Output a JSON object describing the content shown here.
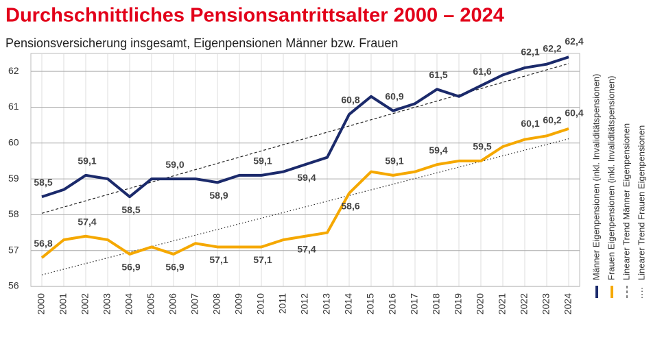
{
  "chart_data": {
    "type": "line",
    "title": "Durchschnittliches Pensionsantrittsalter 2000 – 2024",
    "subtitle": "Pensionsversicherung insgesamt, Eigenpensionen Männer bzw. Frauen",
    "categories": [
      "2000",
      "2001",
      "2002",
      "2003",
      "2004",
      "2005",
      "2006",
      "2007",
      "2008",
      "2009",
      "2010",
      "2011",
      "2012",
      "2013",
      "2014",
      "2015",
      "2016",
      "2017",
      "2018",
      "2019",
      "2020",
      "2021",
      "2022",
      "2023",
      "2024"
    ],
    "series": [
      {
        "name": "Männer Eigenpensionen (inkl. Invaliditätspensionen)",
        "color": "#1b2a6b",
        "values": [
          58.5,
          58.7,
          59.1,
          59.0,
          58.5,
          59.0,
          59.0,
          59.0,
          58.9,
          59.1,
          59.1,
          59.2,
          59.4,
          59.6,
          60.8,
          61.3,
          60.9,
          61.1,
          61.5,
          61.3,
          61.6,
          61.9,
          62.1,
          62.2,
          62.4
        ],
        "value_labels": [
          "58,5",
          null,
          "59,1",
          null,
          "58,5",
          null,
          "59,0",
          null,
          "58,9",
          null,
          "59,1",
          null,
          "59,4",
          null,
          "60,8",
          null,
          "60,9",
          null,
          "61,5",
          null,
          "61,6",
          null,
          "62,1",
          "62,2",
          "62,4"
        ],
        "trend": {
          "name": "Linearer Trend Männer Eigenpensionen",
          "style": "dashed"
        }
      },
      {
        "name": "Frauen Eigenpensionen (inkl. Invaliditätspensionen)",
        "color": "#f5a800",
        "values": [
          56.8,
          57.3,
          57.4,
          57.3,
          56.9,
          57.1,
          56.9,
          57.2,
          57.1,
          57.1,
          57.1,
          57.3,
          57.4,
          57.5,
          58.6,
          59.2,
          59.1,
          59.2,
          59.4,
          59.5,
          59.5,
          59.9,
          60.1,
          60.2,
          60.4
        ],
        "value_labels": [
          "56,8",
          null,
          "57,4",
          null,
          "56,9",
          null,
          "56,9",
          null,
          "57,1",
          null,
          "57,1",
          null,
          "57,4",
          null,
          "58,6",
          null,
          "59,1",
          null,
          "59,4",
          null,
          "59,5",
          null,
          "60,1",
          "60,2",
          "60,4"
        ],
        "trend": {
          "name": "Linearer Trend Frauen Eigenpensionen",
          "style": "dotted"
        }
      }
    ],
    "ylim": [
      56,
      62.5
    ],
    "yticks": [
      56,
      57,
      58,
      59,
      60,
      61,
      62
    ],
    "grid": true
  }
}
